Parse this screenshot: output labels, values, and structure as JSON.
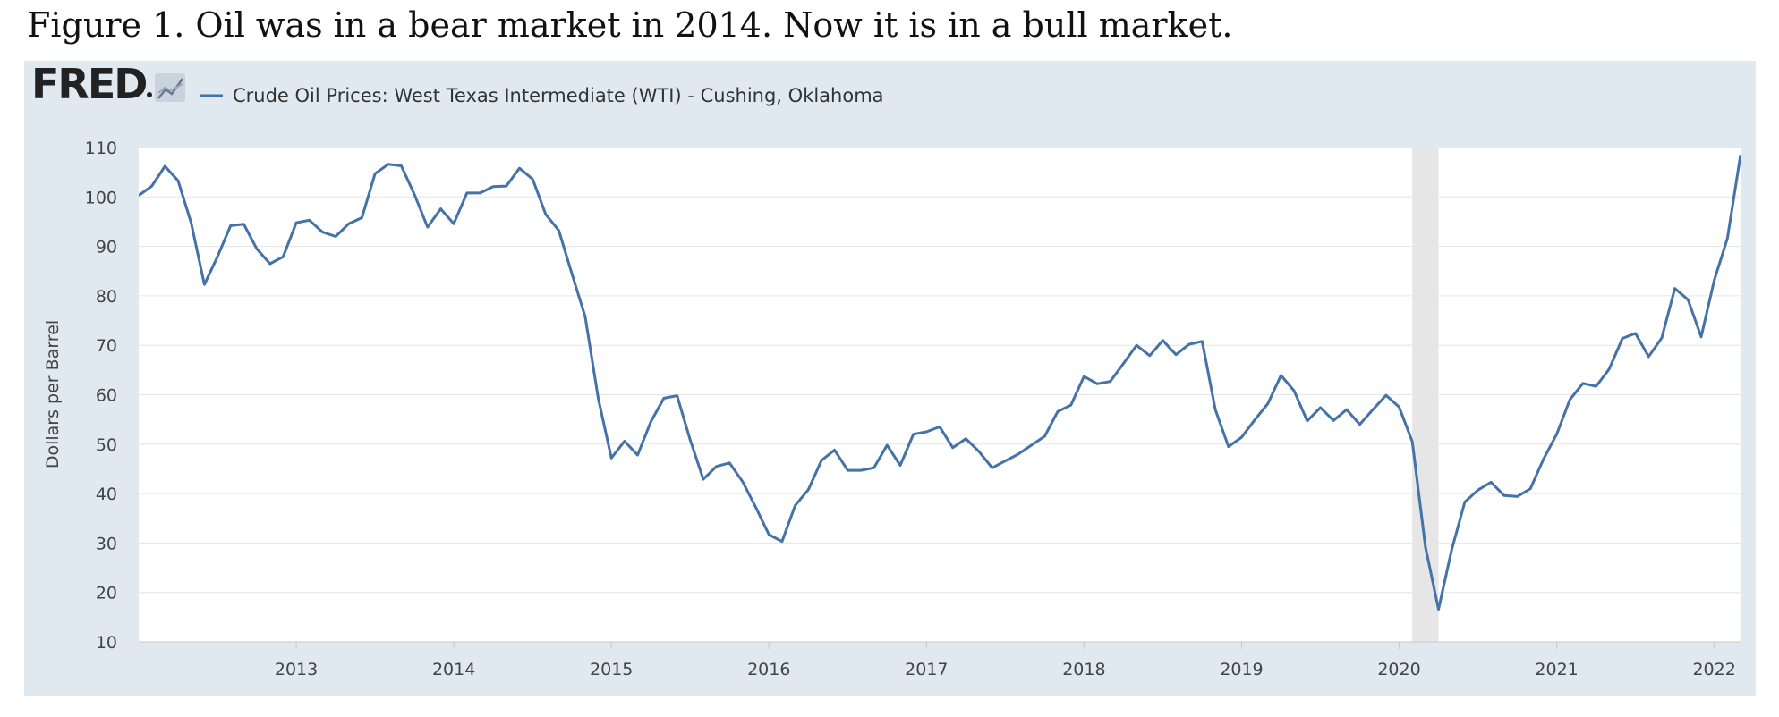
{
  "caption": "Figure 1. Oil was in a bear market in 2014. Now it is in a bull market.",
  "brand": {
    "logo_text": "FRED",
    "logo_color": "#222222",
    "icon": "chart-line-icon"
  },
  "chart_data": {
    "type": "line",
    "title": "",
    "xlabel": "",
    "ylabel": "Dollars per Barrel",
    "ylim": [
      10,
      110
    ],
    "y_ticks": [
      10,
      20,
      30,
      40,
      50,
      60,
      70,
      80,
      90,
      100,
      110
    ],
    "x_ticks": [
      "2013",
      "2014",
      "2015",
      "2016",
      "2017",
      "2018",
      "2019",
      "2020",
      "2021",
      "2022"
    ],
    "x_range": [
      "2012-01",
      "2022-03"
    ],
    "grid": true,
    "legend_position": "top-left",
    "recession_shading": [
      {
        "start": "2020-02",
        "end": "2020-04",
        "color": "#e6e6e6"
      }
    ],
    "series": [
      {
        "name": "Crude Oil Prices: West Texas Intermediate (WTI) - Cushing, Oklahoma",
        "color": "#4572a7",
        "x": [
          "2012-01",
          "2012-02",
          "2012-03",
          "2012-04",
          "2012-05",
          "2012-06",
          "2012-07",
          "2012-08",
          "2012-09",
          "2012-10",
          "2012-11",
          "2012-12",
          "2013-01",
          "2013-02",
          "2013-03",
          "2013-04",
          "2013-05",
          "2013-06",
          "2013-07",
          "2013-08",
          "2013-09",
          "2013-10",
          "2013-11",
          "2013-12",
          "2014-01",
          "2014-02",
          "2014-03",
          "2014-04",
          "2014-05",
          "2014-06",
          "2014-07",
          "2014-08",
          "2014-09",
          "2014-10",
          "2014-11",
          "2014-12",
          "2015-01",
          "2015-02",
          "2015-03",
          "2015-04",
          "2015-05",
          "2015-06",
          "2015-07",
          "2015-08",
          "2015-09",
          "2015-10",
          "2015-11",
          "2015-12",
          "2016-01",
          "2016-02",
          "2016-03",
          "2016-04",
          "2016-05",
          "2016-06",
          "2016-07",
          "2016-08",
          "2016-09",
          "2016-10",
          "2016-11",
          "2016-12",
          "2017-01",
          "2017-02",
          "2017-03",
          "2017-04",
          "2017-05",
          "2017-06",
          "2017-07",
          "2017-08",
          "2017-09",
          "2017-10",
          "2017-11",
          "2017-12",
          "2018-01",
          "2018-02",
          "2018-03",
          "2018-04",
          "2018-05",
          "2018-06",
          "2018-07",
          "2018-08",
          "2018-09",
          "2018-10",
          "2018-11",
          "2018-12",
          "2019-01",
          "2019-02",
          "2019-03",
          "2019-04",
          "2019-05",
          "2019-06",
          "2019-07",
          "2019-08",
          "2019-09",
          "2019-10",
          "2019-11",
          "2019-12",
          "2020-01",
          "2020-02",
          "2020-03",
          "2020-04",
          "2020-05",
          "2020-06",
          "2020-07",
          "2020-08",
          "2020-09",
          "2020-10",
          "2020-11",
          "2020-12",
          "2021-01",
          "2021-02",
          "2021-03",
          "2021-04",
          "2021-05",
          "2021-06",
          "2021-07",
          "2021-08",
          "2021-09",
          "2021-10",
          "2021-11",
          "2021-12",
          "2022-01",
          "2022-02",
          "2022-03"
        ],
        "values": [
          100.3,
          102.2,
          106.2,
          103.3,
          94.7,
          82.3,
          87.9,
          94.2,
          94.5,
          89.5,
          86.5,
          87.9,
          94.8,
          95.3,
          92.9,
          92.0,
          94.6,
          95.8,
          104.7,
          106.6,
          106.3,
          100.5,
          93.9,
          97.6,
          94.6,
          100.8,
          100.8,
          102.1,
          102.2,
          105.8,
          103.6,
          96.5,
          93.2,
          84.4,
          75.8,
          59.3,
          47.2,
          50.6,
          47.8,
          54.5,
          59.3,
          59.8,
          50.9,
          42.9,
          45.5,
          46.2,
          42.4,
          37.2,
          31.7,
          30.3,
          37.6,
          40.8,
          46.7,
          48.8,
          44.7,
          44.7,
          45.2,
          49.8,
          45.7,
          52.0,
          52.5,
          53.5,
          49.3,
          51.1,
          48.5,
          45.2,
          46.6,
          48.0,
          49.8,
          51.6,
          56.6,
          57.9,
          63.7,
          62.2,
          62.7,
          66.3,
          70.0,
          67.9,
          71.0,
          68.1,
          70.2,
          70.8,
          57.0,
          49.5,
          51.4,
          54.9,
          58.2,
          63.9,
          60.8,
          54.7,
          57.4,
          54.8,
          57.0,
          54.0,
          57.0,
          59.9,
          57.5,
          50.5,
          29.2,
          16.6,
          28.6,
          38.3,
          40.7,
          42.3,
          39.6,
          39.4,
          41.0,
          47.0,
          52.0,
          59.0,
          62.3,
          61.7,
          65.2,
          71.4,
          72.4,
          67.7,
          71.5,
          81.5,
          79.2,
          71.7,
          83.2,
          91.6,
          108.5
        ]
      }
    ]
  }
}
